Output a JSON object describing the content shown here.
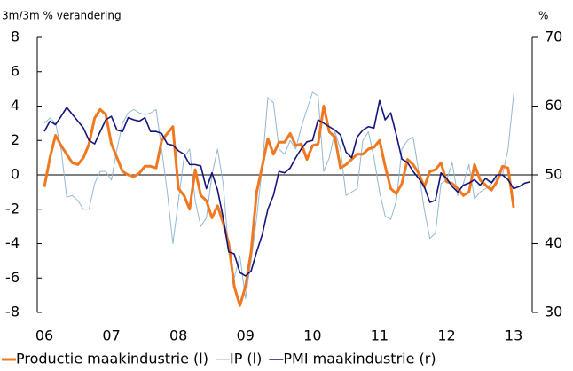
{
  "chart_data": {
    "type": "line",
    "y_label": "3m/3m % verandering",
    "y2_label": "%",
    "categories": [
      "06",
      null,
      null,
      null,
      null,
      null,
      null,
      null,
      null,
      null,
      null,
      null,
      "07",
      null,
      null,
      null,
      null,
      null,
      null,
      null,
      null,
      null,
      null,
      null,
      "08",
      null,
      null,
      null,
      null,
      null,
      null,
      null,
      null,
      null,
      null,
      null,
      "09",
      null,
      null,
      null,
      null,
      null,
      null,
      null,
      null,
      null,
      null,
      null,
      "10",
      null,
      null,
      null,
      null,
      null,
      null,
      null,
      null,
      null,
      null,
      null,
      "11",
      null,
      null,
      null,
      null,
      null,
      null,
      null,
      null,
      null,
      null,
      null,
      "12",
      null,
      null,
      null,
      null,
      null,
      null,
      null,
      null,
      null,
      null,
      null,
      "13",
      null,
      null,
      null
    ],
    "ylim": [
      -8,
      8
    ],
    "yticks": [
      -8,
      -6,
      -4,
      -2,
      0,
      2,
      4,
      6,
      8
    ],
    "y2lim": [
      30,
      70
    ],
    "y2ticks": [
      30,
      40,
      50,
      60,
      70
    ],
    "series": [
      {
        "name": "IP (l)",
        "color": "#93b7d3",
        "width": 1,
        "values": [
          3.0,
          3.3,
          3.0,
          1.5,
          -1.3,
          -1.2,
          -1.5,
          -2.0,
          -2.0,
          -0.5,
          0.2,
          0.2,
          -0.3,
          1.5,
          3.0,
          3.6,
          3.8,
          3.6,
          3.5,
          3.6,
          3.8,
          1.5,
          -1.0,
          -4.0,
          -1.5,
          1.0,
          1.5,
          -1.5,
          -3.0,
          -2.5,
          0.0,
          1.5,
          -0.5,
          -4.5,
          -6.0,
          -4.7,
          -7.2,
          -5.0,
          -2.5,
          0.5,
          4.5,
          4.2,
          1.5,
          1.2,
          2.0,
          1.5,
          2.8,
          3.8,
          4.8,
          4.6,
          0.2,
          1.0,
          2.5,
          1.5,
          -1.2,
          -1.0,
          -0.8,
          2.0,
          2.5,
          1.0,
          -1.0,
          -2.4,
          -2.6,
          -1.5,
          1.5,
          2.0,
          2.2,
          0.2,
          -2.0,
          -3.7,
          -3.4,
          -0.5,
          -0.3,
          0.7,
          -1.2,
          -0.5,
          0.6,
          -1.4,
          -1.0,
          -0.8,
          -0.5,
          -0.2,
          0.0,
          1.5,
          4.7,
          null,
          null,
          null
        ]
      },
      {
        "name": "Productie maakindustrie (l)",
        "color": "#f07820",
        "width": 3,
        "values": [
          -0.7,
          1.0,
          2.3,
          1.7,
          1.2,
          0.7,
          0.6,
          1.0,
          1.8,
          3.3,
          3.8,
          3.5,
          1.8,
          1.0,
          0.2,
          0.0,
          -0.1,
          0.1,
          0.5,
          0.5,
          0.4,
          2.0,
          2.4,
          2.8,
          -0.8,
          -1.2,
          -2.0,
          0.3,
          -1.2,
          -1.5,
          -2.5,
          -1.8,
          -2.8,
          -4.0,
          -6.5,
          -7.6,
          -6.5,
          -4.5,
          -1.0,
          0.5,
          2.1,
          1.2,
          1.9,
          1.9,
          2.4,
          1.7,
          1.8,
          0.9,
          1.7,
          1.8,
          4.0,
          2.5,
          2.2,
          0.4,
          0.6,
          0.9,
          1.2,
          1.2,
          1.5,
          1.6,
          2.0,
          0.5,
          -0.8,
          -1.1,
          -0.5,
          0.9,
          0.6,
          0.1,
          -0.7,
          0.2,
          0.3,
          0.7,
          -0.4,
          -0.5,
          -0.8,
          -1.2,
          -1.0,
          0.6,
          -0.3,
          -0.6,
          -0.9,
          -0.4,
          0.5,
          0.4,
          -1.9,
          null,
          null,
          null
        ]
      },
      {
        "name": "PMI maakindustrie (r)",
        "color": "#14147a",
        "width": 1.6,
        "axis": "y2",
        "values": [
          56.3,
          57.8,
          57.3,
          58.5,
          59.8,
          58.8,
          57.8,
          56.8,
          55.0,
          54.5,
          56.3,
          58.0,
          58.5,
          56.5,
          56.3,
          58.3,
          58.0,
          57.8,
          58.3,
          56.3,
          56.3,
          56.0,
          54.5,
          54.3,
          53.5,
          53.0,
          51.5,
          51.5,
          51.3,
          48.0,
          50.3,
          47.8,
          43.8,
          38.8,
          38.5,
          35.8,
          35.3,
          36.0,
          38.8,
          41.3,
          45.0,
          47.0,
          50.5,
          50.3,
          51.0,
          52.5,
          53.8,
          54.8,
          55.0,
          58.0,
          57.5,
          57.0,
          56.5,
          55.8,
          53.3,
          52.5,
          55.5,
          56.5,
          57.0,
          56.8,
          60.8,
          58.0,
          59.0,
          55.8,
          52.3,
          51.8,
          50.5,
          49.5,
          48.3,
          46.0,
          46.3,
          50.3,
          49.5,
          48.3,
          47.5,
          48.5,
          48.8,
          49.3,
          48.5,
          49.5,
          48.8,
          50.0,
          50.0,
          49.3,
          48.0,
          48.3,
          48.8,
          49.0
        ]
      }
    ],
    "legend": "bottom"
  }
}
